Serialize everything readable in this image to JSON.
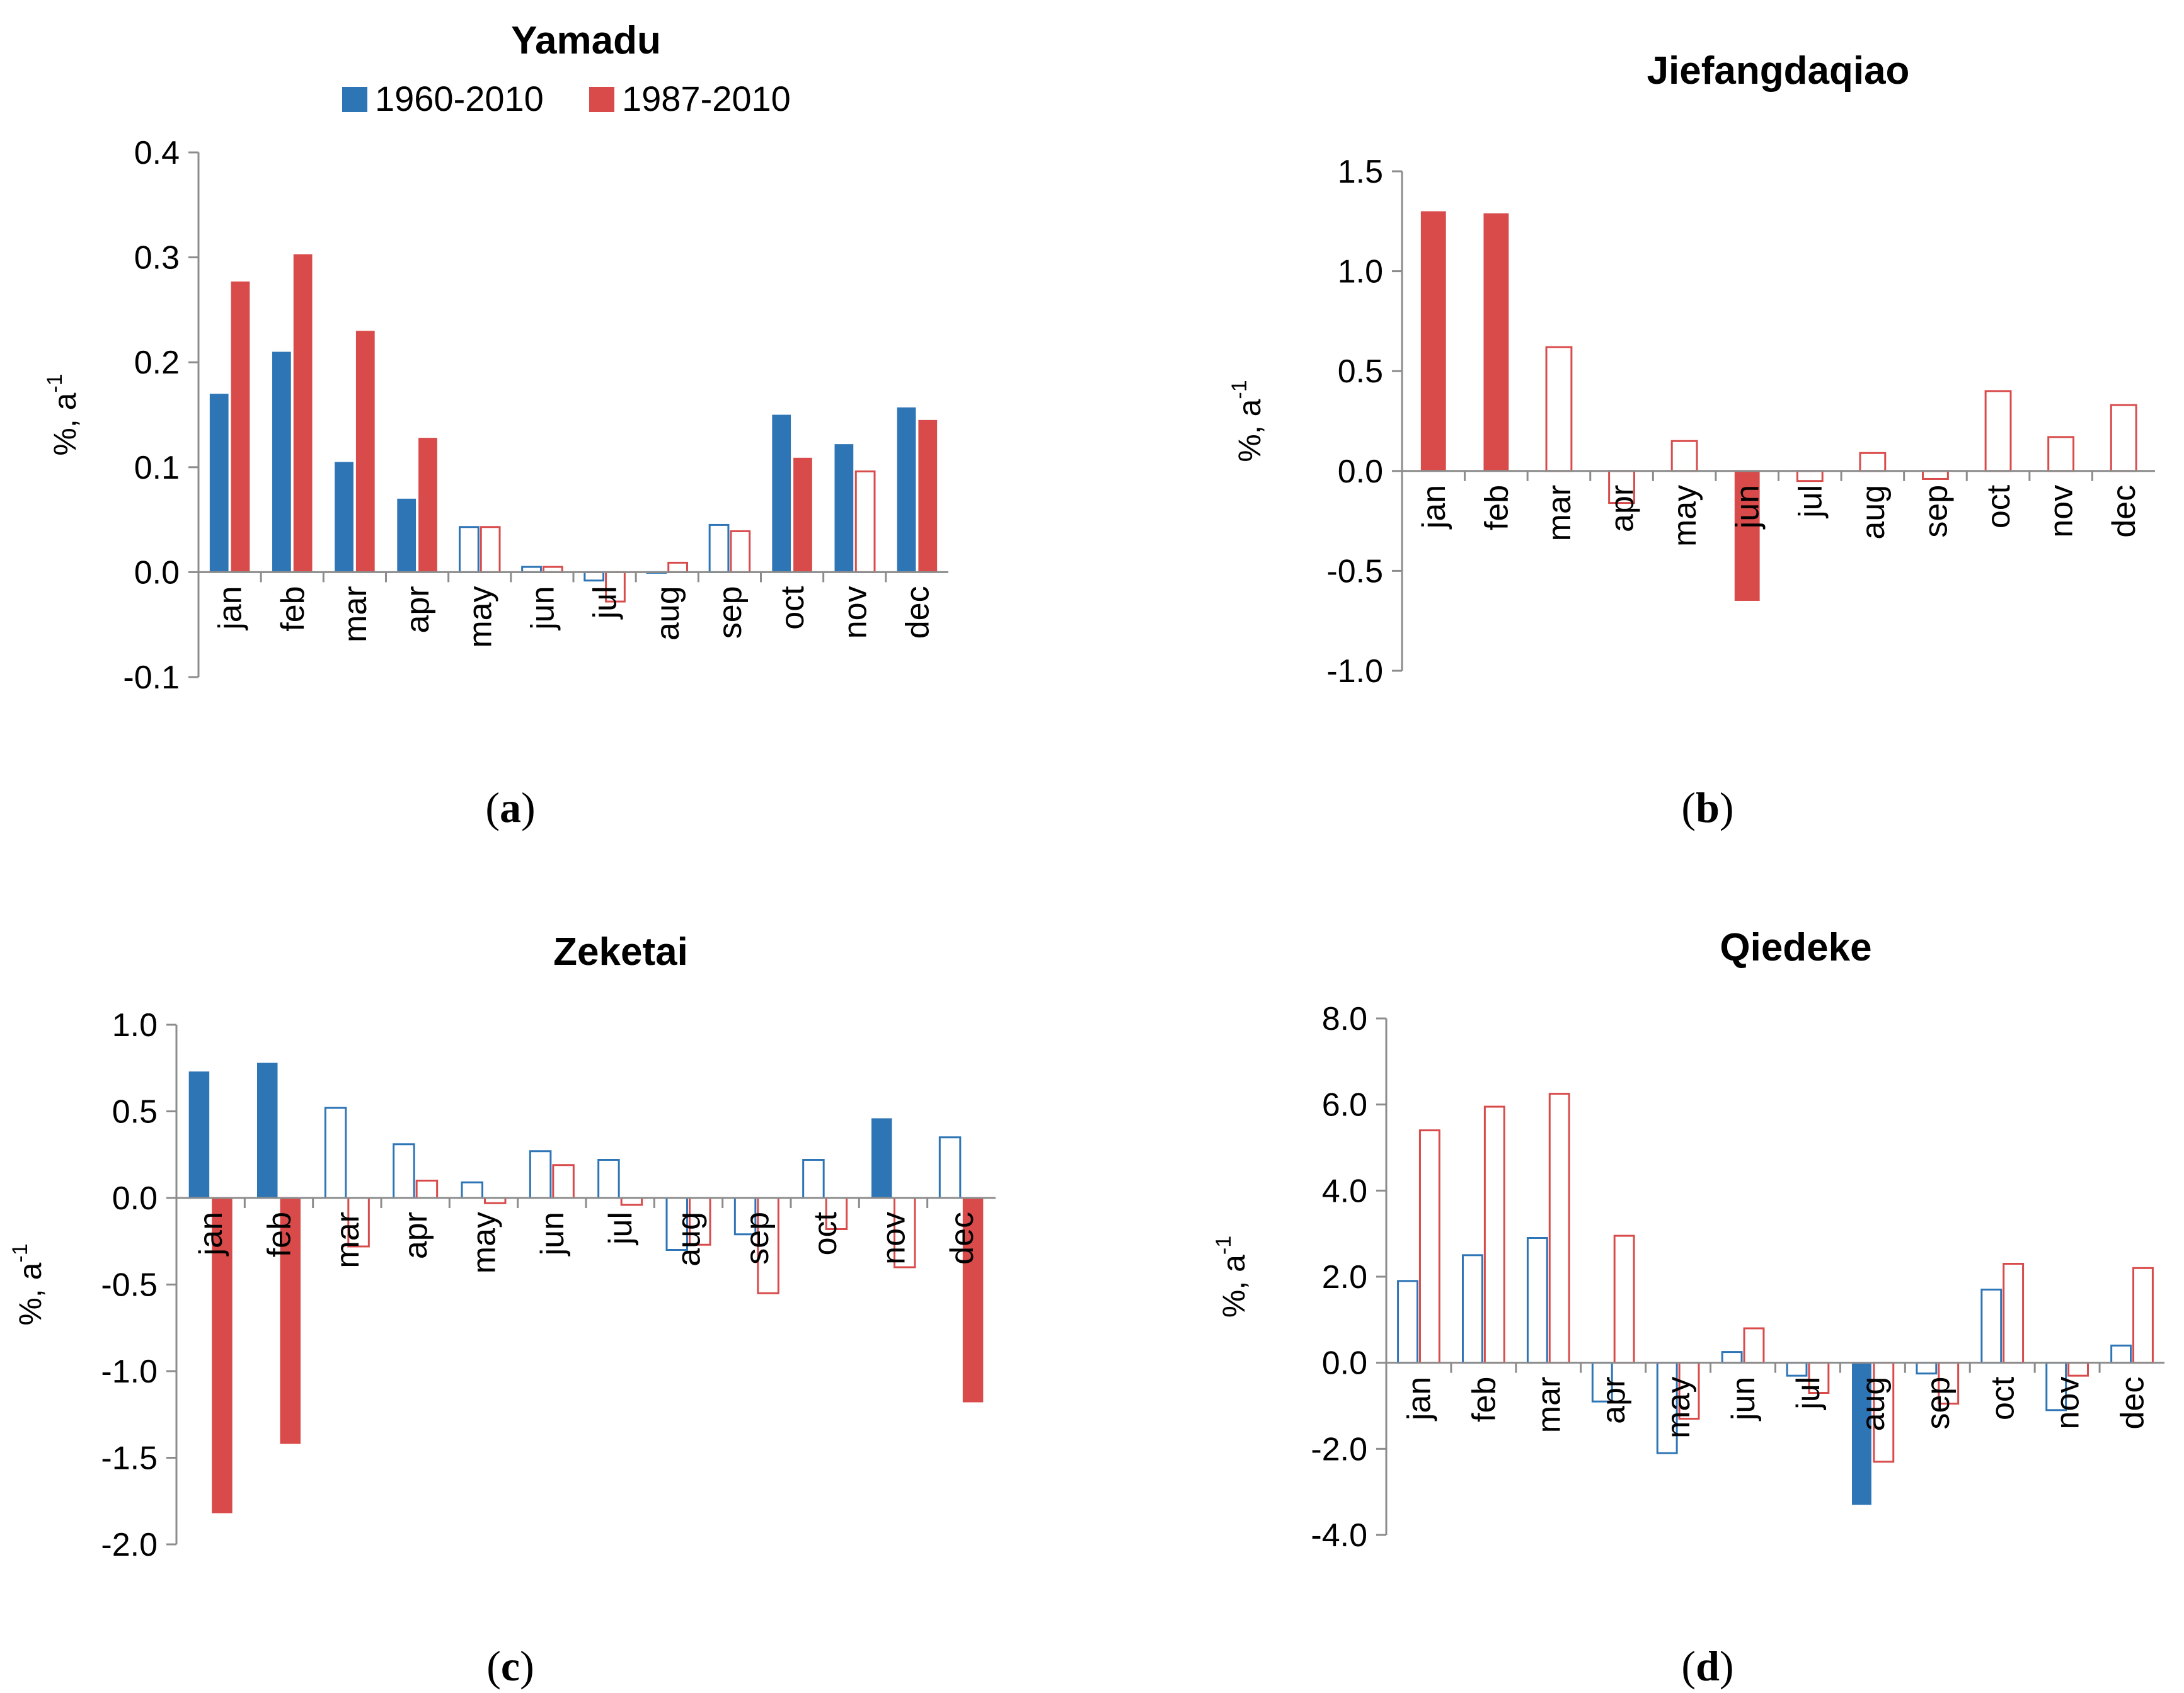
{
  "colors": {
    "series1": "#2e75b6",
    "series2": "#d94b4b"
  },
  "chart_data": [
    {
      "type": "bar",
      "panel_label": "a",
      "title": "Yamadu",
      "ylabel_base": "%, a",
      "ylabel_sup": "-1",
      "ylim": [
        -0.1,
        0.4
      ],
      "ticks": [
        0.4,
        0.3,
        0.2,
        0.1,
        0.0,
        -0.1
      ],
      "tick_labels": [
        "0.4",
        "0.3",
        "0.2",
        "0.1",
        "0.0",
        "-0.1"
      ],
      "categories": [
        "jan",
        "feb",
        "mar",
        "apr",
        "may",
        "jun",
        "jul",
        "aug",
        "sep",
        "oct",
        "nov",
        "dec"
      ],
      "legend": [
        "1960-2010",
        "1987-2010"
      ],
      "series": [
        {
          "name": "1960-2010",
          "values": [
            0.17,
            0.21,
            0.105,
            0.07,
            0.043,
            0.005,
            -0.008,
            0.0,
            0.045,
            0.15,
            0.122,
            0.157
          ],
          "filled": [
            true,
            true,
            true,
            true,
            false,
            false,
            false,
            false,
            false,
            true,
            true,
            true
          ]
        },
        {
          "name": "1987-2010",
          "values": [
            0.277,
            0.303,
            0.23,
            0.128,
            0.043,
            0.005,
            -0.028,
            0.009,
            0.039,
            0.109,
            0.096,
            0.145
          ],
          "filled": [
            true,
            true,
            true,
            true,
            false,
            false,
            false,
            false,
            false,
            true,
            false,
            true
          ]
        }
      ]
    },
    {
      "type": "bar",
      "panel_label": "b",
      "title": "Jiefangdaqiao",
      "ylabel_base": "%, a",
      "ylabel_sup": "-1",
      "ylim": [
        -1.0,
        1.5
      ],
      "ticks": [
        1.5,
        1.0,
        0.5,
        0.0,
        -0.5,
        -1.0
      ],
      "tick_labels": [
        "1.5",
        "1.0",
        "0.5",
        "0.0",
        "-0.5",
        "-1.0"
      ],
      "categories": [
        "jan",
        "feb",
        "mar",
        "apr",
        "may",
        "jun",
        "jul",
        "aug",
        "sep",
        "oct",
        "nov",
        "dec"
      ],
      "series": [
        {
          "name": "1987-2010",
          "values": [
            1.3,
            1.29,
            0.62,
            -0.16,
            0.15,
            -0.65,
            -0.05,
            0.09,
            -0.04,
            0.4,
            0.17,
            0.33
          ],
          "filled": [
            true,
            true,
            false,
            false,
            false,
            true,
            false,
            false,
            false,
            false,
            false,
            false
          ]
        }
      ]
    },
    {
      "type": "bar",
      "panel_label": "c",
      "title": "Zeketai",
      "ylabel_base": "%, a",
      "ylabel_sup": "-1",
      "ylim": [
        -2.0,
        1.0
      ],
      "ticks": [
        1.0,
        0.5,
        0.0,
        -0.5,
        -1.0,
        -1.5,
        -2.0
      ],
      "tick_labels": [
        "1.0",
        "0.5",
        "0.0",
        "-0.5",
        "-1.0",
        "-1.5",
        "-2.0"
      ],
      "categories": [
        "jan",
        "feb",
        "mar",
        "apr",
        "may",
        "jun",
        "jul",
        "aug",
        "sep",
        "oct",
        "nov",
        "dec"
      ],
      "series": [
        {
          "name": "1960-2010",
          "values": [
            0.73,
            0.78,
            0.52,
            0.31,
            0.09,
            0.27,
            0.22,
            -0.3,
            -0.21,
            0.22,
            0.46,
            0.35
          ],
          "filled": [
            true,
            true,
            false,
            false,
            false,
            false,
            false,
            false,
            false,
            false,
            true,
            false
          ]
        },
        {
          "name": "1987-2010",
          "values": [
            -1.82,
            -1.42,
            -0.28,
            0.1,
            -0.03,
            0.19,
            -0.04,
            -0.27,
            -0.55,
            -0.18,
            -0.4,
            -1.18
          ],
          "filled": [
            true,
            true,
            false,
            false,
            false,
            false,
            false,
            false,
            false,
            false,
            false,
            true
          ]
        }
      ]
    },
    {
      "type": "bar",
      "panel_label": "d",
      "title": "Qiedeke",
      "ylabel_base": "%, a",
      "ylabel_sup": "-1",
      "ylim": [
        -4.0,
        8.0
      ],
      "ticks": [
        8.0,
        6.0,
        4.0,
        2.0,
        0.0,
        -2.0,
        -4.0
      ],
      "tick_labels": [
        "8.0",
        "6.0",
        "4.0",
        "2.0",
        "0.0",
        "-2.0",
        "-4.0"
      ],
      "categories": [
        "jan",
        "feb",
        "mar",
        "apr",
        "may",
        "jun",
        "jul",
        "aug",
        "sep",
        "oct",
        "nov",
        "dec"
      ],
      "series": [
        {
          "name": "1960-2010",
          "values": [
            1.9,
            2.5,
            2.9,
            -0.9,
            -2.1,
            0.25,
            -0.3,
            -3.3,
            -0.25,
            1.7,
            -1.1,
            0.4
          ],
          "filled": [
            false,
            false,
            false,
            false,
            false,
            false,
            false,
            true,
            false,
            false,
            false,
            false
          ]
        },
        {
          "name": "1987-2010",
          "values": [
            5.4,
            5.95,
            6.25,
            2.95,
            -1.3,
            0.8,
            -0.7,
            -2.3,
            -0.95,
            2.3,
            -0.3,
            2.2
          ],
          "filled": [
            false,
            false,
            false,
            false,
            false,
            false,
            false,
            false,
            false,
            false,
            false,
            false
          ]
        }
      ]
    }
  ]
}
